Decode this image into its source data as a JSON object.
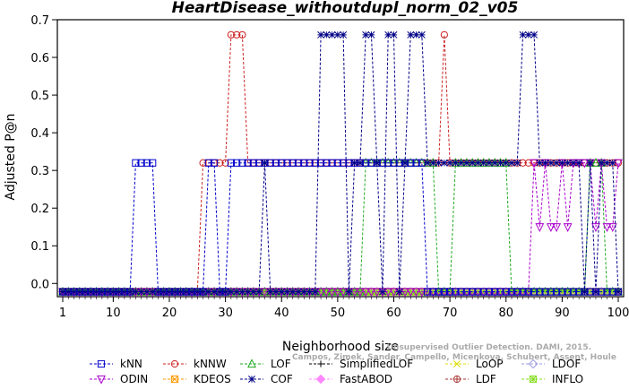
{
  "chart_data": {
    "type": "line",
    "title": "HeartDisease_withoutdupl_norm_02_v05",
    "xlabel": "Neighborhood size",
    "ylabel": "Adjusted P@n",
    "xlim": [
      1,
      100
    ],
    "ylim": [
      -0.035,
      0.7
    ],
    "xticks": [
      1,
      10,
      20,
      30,
      40,
      50,
      60,
      70,
      80,
      90,
      100
    ],
    "yticks": [
      0.0,
      0.1,
      0.2,
      0.3,
      0.4,
      0.5,
      0.6,
      0.7
    ],
    "ytick_labels": [
      "0.0",
      "0.1",
      "0.2",
      "0.3",
      "0.4",
      "0.5",
      "0.6",
      "0.7"
    ],
    "grid": false,
    "legend_position": "bottom",
    "credit": [
      "Campos, Zimek, Sander, Campello, Micenkova, Schubert, Assent, Houle",
      "Unsupervised Outlier Detection. DAMI, 2015."
    ],
    "series": [
      {
        "name": "kNN",
        "color": "#0000cc",
        "marker": "square",
        "segments": [
          [
            1,
            -0.022
          ],
          [
            13,
            -0.022
          ],
          [
            14,
            0.32
          ],
          [
            17,
            0.32
          ],
          [
            18,
            -0.022
          ],
          [
            26,
            -0.022
          ],
          [
            27,
            0.32
          ],
          [
            28,
            0.32
          ],
          [
            29,
            -0.022
          ],
          [
            30,
            -0.022
          ],
          [
            31,
            0.32
          ],
          [
            65,
            0.32
          ],
          [
            66,
            -0.022
          ],
          [
            100,
            -0.022
          ]
        ]
      },
      {
        "name": "kNNW",
        "color": "#cc2222",
        "marker": "circle",
        "segments": [
          [
            1,
            -0.022
          ],
          [
            25,
            -0.022
          ],
          [
            26,
            0.32
          ],
          [
            30,
            0.32
          ],
          [
            31,
            0.66
          ],
          [
            33,
            0.66
          ],
          [
            34,
            0.32
          ],
          [
            68,
            0.32
          ],
          [
            69,
            0.66
          ],
          [
            70,
            0.32
          ],
          [
            100,
            0.32
          ]
        ]
      },
      {
        "name": "LOF",
        "color": "#22aa22",
        "marker": "triangle-up",
        "segments": [
          [
            1,
            -0.022
          ],
          [
            54,
            -0.022
          ],
          [
            55,
            0.32
          ],
          [
            67,
            0.32
          ],
          [
            68,
            -0.022
          ],
          [
            70,
            -0.022
          ],
          [
            71,
            0.32
          ],
          [
            80,
            0.32
          ],
          [
            81,
            -0.022
          ],
          [
            94,
            -0.022
          ],
          [
            95,
            0.32
          ],
          [
            97,
            0.32
          ],
          [
            98,
            -0.022
          ],
          [
            100,
            -0.022
          ]
        ]
      },
      {
        "name": "SimplifiedLOF",
        "color": "#000000",
        "marker": "plus",
        "segments": [
          [
            1,
            -0.022
          ],
          [
            100,
            -0.022
          ]
        ]
      },
      {
        "name": "LoOP",
        "color": "#dddd00",
        "marker": "x",
        "segments": [
          [
            1,
            -0.022
          ],
          [
            100,
            -0.022
          ]
        ]
      },
      {
        "name": "LDOF",
        "color": "#9999dd",
        "marker": "diamond",
        "segments": [
          [
            1,
            -0.022
          ],
          [
            100,
            -0.022
          ]
        ]
      },
      {
        "name": "ODIN",
        "color": "#aa00cc",
        "marker": "triangle-down",
        "segments": [
          [
            1,
            -0.022
          ],
          [
            84,
            -0.022
          ],
          [
            85,
            0.32
          ],
          [
            86,
            0.15
          ],
          [
            87,
            0.32
          ],
          [
            88,
            0.15
          ],
          [
            89,
            0.15
          ],
          [
            90,
            0.32
          ],
          [
            91,
            0.15
          ],
          [
            92,
            0.32
          ],
          [
            95,
            0.32
          ],
          [
            96,
            0.15
          ],
          [
            97,
            0.32
          ],
          [
            98,
            0.15
          ],
          [
            99,
            0.15
          ],
          [
            100,
            0.32
          ]
        ]
      },
      {
        "name": "KDEOS",
        "color": "#ff9900",
        "marker": "box-x",
        "segments": [
          [
            1,
            -0.022
          ],
          [
            100,
            -0.022
          ]
        ]
      },
      {
        "name": "COF",
        "color": "#000088",
        "marker": "asterisk",
        "segments": [
          [
            1,
            -0.022
          ],
          [
            36,
            -0.022
          ],
          [
            37,
            0.32
          ],
          [
            38,
            -0.022
          ],
          [
            46,
            -0.022
          ],
          [
            47,
            0.66
          ],
          [
            51,
            0.66
          ],
          [
            52,
            -0.022
          ],
          [
            53,
            0.32
          ],
          [
            54,
            0.32
          ],
          [
            55,
            0.66
          ],
          [
            56,
            0.66
          ],
          [
            57,
            0.32
          ],
          [
            58,
            -0.022
          ],
          [
            59,
            0.66
          ],
          [
            60,
            0.66
          ],
          [
            61,
            -0.022
          ],
          [
            62,
            0.32
          ],
          [
            63,
            0.66
          ],
          [
            65,
            0.66
          ],
          [
            66,
            0.32
          ],
          [
            82,
            0.32
          ],
          [
            83,
            0.66
          ],
          [
            85,
            0.66
          ],
          [
            86,
            0.32
          ],
          [
            93,
            0.32
          ],
          [
            94,
            -0.022
          ],
          [
            95,
            0.32
          ],
          [
            96,
            -0.022
          ],
          [
            97,
            0.32
          ],
          [
            99,
            0.32
          ],
          [
            100,
            -0.022
          ]
        ]
      },
      {
        "name": "FastABOD",
        "color": "#ff88ff",
        "marker": "diamond-filled",
        "segments": [
          [
            1,
            -0.022
          ],
          [
            100,
            -0.022
          ]
        ]
      },
      {
        "name": "LDF",
        "color": "#aa3333",
        "marker": "circle-plus",
        "segments": [
          [
            1,
            -0.022
          ],
          [
            100,
            -0.022
          ]
        ]
      },
      {
        "name": "INFLO",
        "color": "#88dd22",
        "marker": "star-box",
        "segments": [
          [
            1,
            -0.022
          ],
          [
            100,
            -0.022
          ]
        ]
      }
    ]
  }
}
